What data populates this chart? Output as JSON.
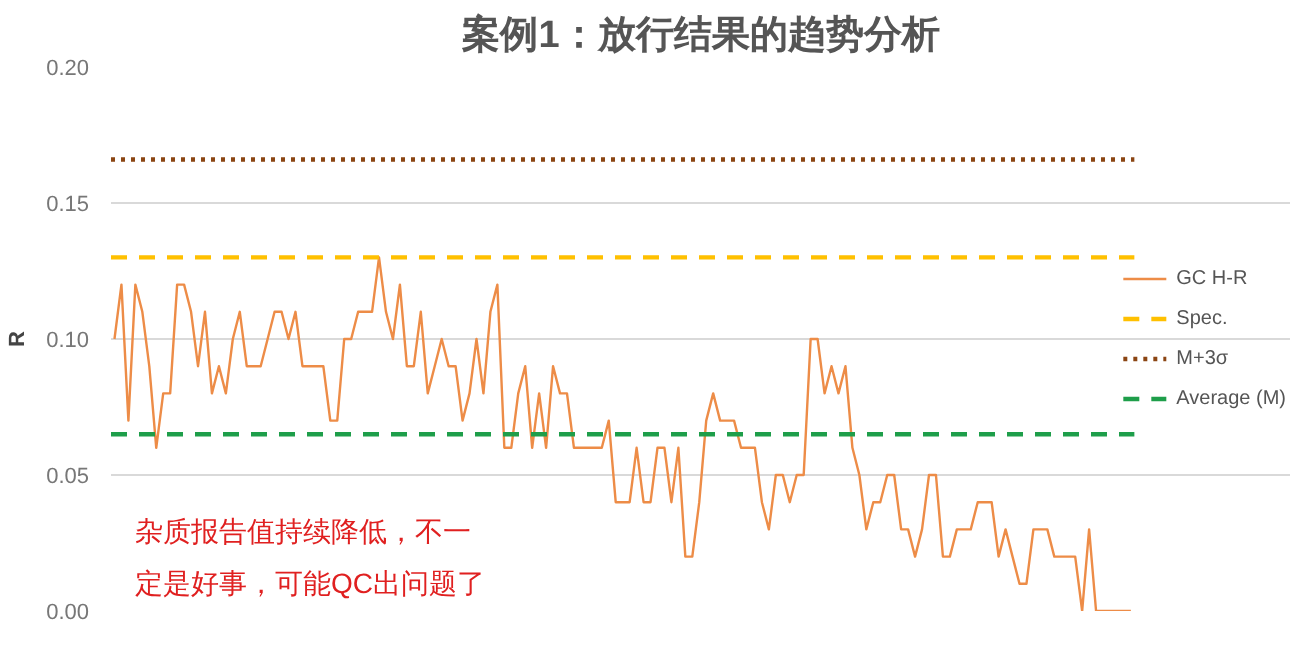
{
  "chart_data": {
    "type": "line",
    "title": "案例1：放行结果的趋势分析",
    "ylabel": "R",
    "categories": [
      null,
      null,
      null,
      null,
      null,
      null,
      null,
      null,
      null,
      null,
      null,
      null,
      null,
      null,
      null,
      null,
      null,
      null,
      null,
      null,
      null,
      null,
      null,
      null,
      null,
      null,
      null,
      null,
      null,
      null,
      null,
      null,
      null,
      null,
      null,
      null,
      null,
      null,
      null,
      null,
      null,
      null,
      null,
      null,
      null,
      null,
      null,
      null,
      null,
      null,
      null,
      null,
      null,
      null,
      null,
      null,
      null,
      null,
      null,
      null,
      null,
      null,
      null,
      null,
      null,
      null,
      null,
      null,
      null,
      null,
      null,
      null,
      null,
      null,
      null,
      null,
      null,
      null,
      null,
      null,
      null,
      null,
      null,
      null,
      null,
      null,
      null,
      null,
      null,
      null,
      null,
      null,
      null,
      null,
      null,
      null,
      null,
      null,
      null,
      null,
      null,
      null,
      null,
      null,
      null,
      null,
      null,
      null,
      null,
      null,
      null,
      null,
      null,
      null,
      null,
      null,
      null,
      null,
      null,
      null,
      null,
      null,
      null,
      null,
      null,
      null,
      null,
      null,
      null,
      null,
      null,
      null,
      null,
      null,
      null,
      null,
      null,
      null,
      null,
      null,
      null,
      null,
      null,
      null,
      null,
      null,
      null
    ],
    "series": [
      {
        "name": "GC H-R",
        "color": "#ed8c47",
        "values": [
          0.1,
          0.12,
          0.07,
          0.12,
          0.11,
          0.09,
          0.06,
          0.08,
          0.08,
          0.12,
          0.12,
          0.11,
          0.09,
          0.11,
          0.08,
          0.09,
          0.08,
          0.1,
          0.11,
          0.09,
          0.09,
          0.09,
          0.1,
          0.11,
          0.11,
          0.1,
          0.11,
          0.09,
          0.09,
          0.09,
          0.09,
          0.07,
          0.07,
          0.1,
          0.1,
          0.11,
          0.11,
          0.11,
          0.13,
          0.11,
          0.1,
          0.12,
          0.09,
          0.09,
          0.11,
          0.08,
          0.09,
          0.1,
          0.09,
          0.09,
          0.07,
          0.08,
          0.1,
          0.08,
          0.11,
          0.12,
          0.06,
          0.06,
          0.08,
          0.09,
          0.06,
          0.08,
          0.06,
          0.09,
          0.08,
          0.08,
          0.06,
          0.06,
          0.06,
          0.06,
          0.06,
          0.07,
          0.04,
          0.04,
          0.04,
          0.06,
          0.04,
          0.04,
          0.06,
          0.06,
          0.04,
          0.06,
          0.02,
          0.02,
          0.04,
          0.07,
          0.08,
          0.07,
          0.07,
          0.07,
          0.06,
          0.06,
          0.06,
          0.04,
          0.03,
          0.05,
          0.05,
          0.04,
          0.05,
          0.05,
          0.1,
          0.1,
          0.08,
          0.09,
          0.08,
          0.09,
          0.06,
          0.05,
          0.03,
          0.04,
          0.04,
          0.05,
          0.05,
          0.03,
          0.03,
          0.02,
          0.03,
          0.05,
          0.05,
          0.02,
          0.02,
          0.03,
          0.03,
          0.03,
          0.04,
          0.04,
          0.04,
          0.02,
          0.03,
          0.02,
          0.01,
          0.01,
          0.03,
          0.03,
          0.03,
          0.02,
          0.02,
          0.02,
          0.02,
          0.0,
          0.03,
          0.0,
          0.0,
          0.0,
          0.0,
          0.0,
          0.0
        ]
      }
    ],
    "ref_lines": [
      {
        "axis": "y",
        "value": 0.13,
        "label": "Spec.",
        "color": "#ffc000",
        "line_style": "dashed"
      },
      {
        "axis": "y",
        "value": 0.166,
        "label": "M+3σ",
        "color": "#8b4513",
        "line_style": "dotted"
      },
      {
        "axis": "y",
        "value": 0.065,
        "label": "Average (M)",
        "color": "#1e9e4a",
        "line_style": "dashed"
      }
    ],
    "ylim": [
      0,
      0.2
    ],
    "yticks": [
      {
        "value": 0,
        "label": "0.00"
      },
      {
        "value": 0.05,
        "label": "0.05"
      },
      {
        "value": 0.1,
        "label": "0.10"
      },
      {
        "value": 0.15,
        "label": "0.15"
      },
      {
        "value": 0.2,
        "label": "0.20"
      }
    ],
    "grid": "y",
    "legend": "right",
    "tick_labels": "y",
    "annotations": [
      "杂质报告值持续降低，不一",
      "定是好事，可能QC出问题了"
    ]
  }
}
